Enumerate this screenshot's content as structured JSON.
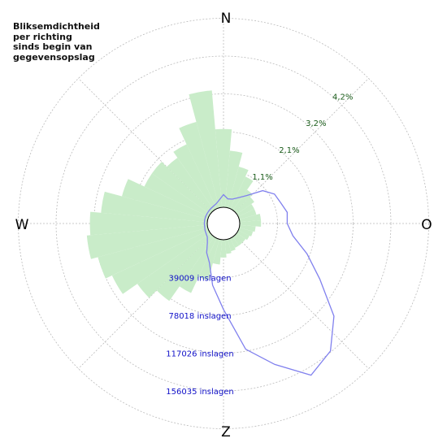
{
  "title_lines": [
    "Bliksemdichtheid",
    "per richting",
    "sinds begin van",
    "gegevensopslag"
  ],
  "compass": {
    "n": "N",
    "e": "O",
    "s": "Z",
    "w": "W"
  },
  "colors": {
    "density_fill": "#c9ecc9",
    "strike_line": "#8080ee",
    "percent_text": "#1a5c1a",
    "count_text": "#1010c8",
    "grid": "#bbbbbb"
  },
  "chart_data": {
    "type": "polar",
    "title": "Bliksemdichtheid per richting sinds begin van gegevensopslag",
    "theta_unit": "degrees (0 = N, clockwise)",
    "radial_grid_pct": [
      "1,1%",
      "2,1%",
      "3,2%",
      "4,2%"
    ],
    "radial_grid_counts": [
      "39009 inslagen",
      "78018 inslagen",
      "117026 inslagen",
      "156035 inslagen"
    ],
    "series": [
      {
        "kind": "bars",
        "unit": "percent",
        "directions": [
          0,
          10,
          20,
          30,
          40,
          50,
          60,
          70,
          80,
          90,
          100,
          110,
          120,
          130,
          140,
          150,
          160,
          170,
          180,
          190,
          200,
          210,
          220,
          230,
          240,
          250,
          260,
          270,
          280,
          290,
          300,
          310,
          320,
          330,
          340,
          350
        ],
        "values": [
          2.2,
          1.6,
          1.2,
          1.0,
          0.7,
          0.6,
          0.5,
          0.5,
          0.6,
          0.6,
          0.45,
          0.4,
          0.35,
          0.3,
          0.3,
          0.3,
          0.35,
          0.4,
          0.5,
          0.7,
          1.2,
          1.7,
          2.2,
          2.5,
          3.0,
          3.2,
          3.4,
          3.3,
          3.0,
          2.5,
          2.0,
          2.0,
          1.8,
          2.0,
          2.5,
          3.3
        ]
      },
      {
        "kind": "line",
        "unit": "inslagen",
        "directions": [
          0,
          10,
          20,
          30,
          40,
          50,
          60,
          70,
          80,
          90,
          100,
          110,
          120,
          130,
          140,
          150,
          160,
          170,
          180,
          190,
          200,
          210,
          220,
          230,
          240,
          250,
          260,
          270,
          280,
          290,
          300,
          310,
          320,
          330,
          340,
          350
        ],
        "values": [
          13000,
          9000,
          10000,
          14000,
          21000,
          36000,
          44000,
          46000,
          50000,
          49000,
          56000,
          75000,
          98000,
          132000,
          155000,
          164000,
          138000,
          115000,
          72000,
          48000,
          26000,
          18000,
          9000,
          5000,
          4000,
          3500,
          3000,
          3000,
          3000,
          3000,
          3000,
          3200,
          3500,
          4000,
          5000,
          8000
        ]
      }
    ]
  }
}
